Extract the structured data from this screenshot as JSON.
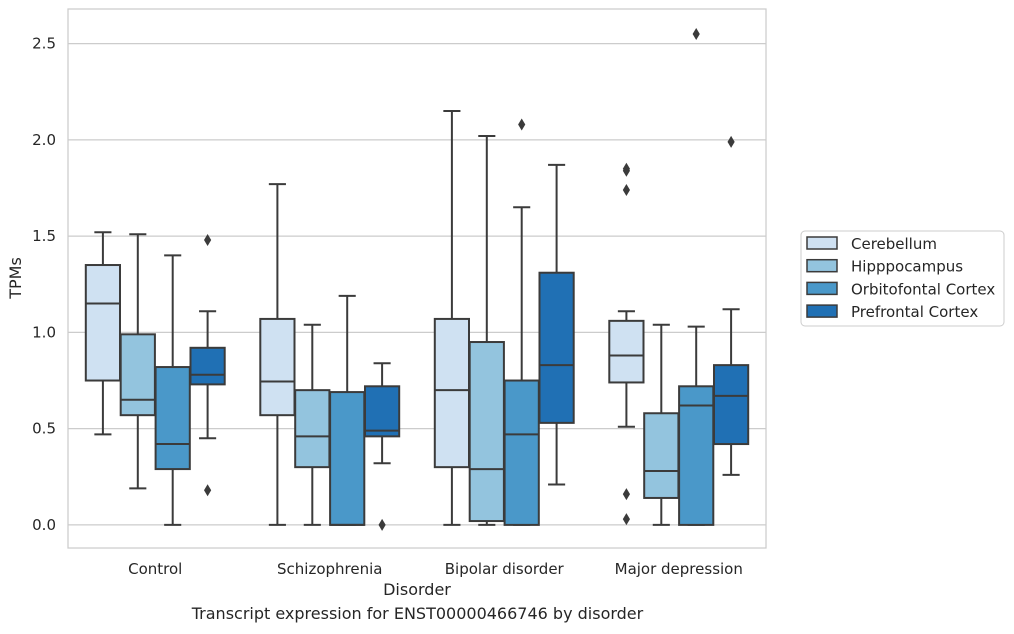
{
  "chart_data": {
    "type": "box",
    "xlabel": "Disorder",
    "ylabel": "TPMs",
    "ylim": [
      -0.12,
      2.68
    ],
    "yticks": [
      "0.0",
      "0.5",
      "1.0",
      "1.5",
      "2.0",
      "2.5"
    ],
    "grid": "horizontal",
    "legend_position": "right",
    "categories": [
      "Control",
      "Schizophrenia",
      "Bipolar disorder",
      "Major depression"
    ],
    "series": [
      {
        "name": "Cerebellum",
        "color": "#cfe1f2",
        "boxes": [
          {
            "whislo": 0.47,
            "q1": 0.75,
            "med": 1.15,
            "q3": 1.35,
            "whishi": 1.52,
            "fliers": []
          },
          {
            "whislo": 0.0,
            "q1": 0.57,
            "med": 0.745,
            "q3": 1.07,
            "whishi": 1.77,
            "fliers": []
          },
          {
            "whislo": 0.0,
            "q1": 0.3,
            "med": 0.7,
            "q3": 1.07,
            "whishi": 2.15,
            "fliers": []
          },
          {
            "whislo": 0.51,
            "q1": 0.74,
            "med": 0.88,
            "q3": 1.06,
            "whishi": 1.11,
            "fliers": [
              0.03,
              0.16,
              1.74,
              1.84,
              1.85
            ]
          }
        ]
      },
      {
        "name": "Hipppocampus",
        "color": "#93c4de",
        "boxes": [
          {
            "whislo": 0.19,
            "q1": 0.57,
            "med": 0.65,
            "q3": 0.99,
            "whishi": 1.51,
            "fliers": []
          },
          {
            "whislo": 0.0,
            "q1": 0.3,
            "med": 0.46,
            "q3": 0.7,
            "whishi": 1.04,
            "fliers": []
          },
          {
            "whislo": 0.0,
            "q1": 0.02,
            "med": 0.29,
            "q3": 0.95,
            "whishi": 2.02,
            "fliers": []
          },
          {
            "whislo": 0.0,
            "q1": 0.14,
            "med": 0.28,
            "q3": 0.58,
            "whishi": 1.04,
            "fliers": []
          }
        ]
      },
      {
        "name": "Orbitofontal Cortex",
        "color": "#4a98c9",
        "boxes": [
          {
            "whislo": 0.0,
            "q1": 0.29,
            "med": 0.42,
            "q3": 0.82,
            "whishi": 1.4,
            "fliers": []
          },
          {
            "whislo": 0.0,
            "q1": 0.0,
            "med": 0.0,
            "q3": 0.69,
            "whishi": 1.19,
            "fliers": []
          },
          {
            "whislo": 0.0,
            "q1": 0.0,
            "med": 0.47,
            "q3": 0.75,
            "whishi": 1.65,
            "fliers": [
              2.08
            ]
          },
          {
            "whislo": 0.0,
            "q1": 0.0,
            "med": 0.62,
            "q3": 0.72,
            "whishi": 1.03,
            "fliers": [
              2.55
            ]
          }
        ]
      },
      {
        "name": "Prefrontal Cortex",
        "color": "#2070b4",
        "boxes": [
          {
            "whislo": 0.45,
            "q1": 0.73,
            "med": 0.78,
            "q3": 0.92,
            "whishi": 1.11,
            "fliers": [
              0.18,
              1.48
            ]
          },
          {
            "whislo": 0.32,
            "q1": 0.46,
            "med": 0.49,
            "q3": 0.72,
            "whishi": 0.84,
            "fliers": [
              0.0
            ]
          },
          {
            "whislo": 0.21,
            "q1": 0.53,
            "med": 0.83,
            "q3": 1.31,
            "whishi": 1.87,
            "fliers": []
          },
          {
            "whislo": 0.26,
            "q1": 0.42,
            "med": 0.67,
            "q3": 0.83,
            "whishi": 1.12,
            "fliers": [
              1.99
            ]
          }
        ]
      }
    ]
  },
  "caption": "Transcript expression for ENST00000466746 by disorder"
}
